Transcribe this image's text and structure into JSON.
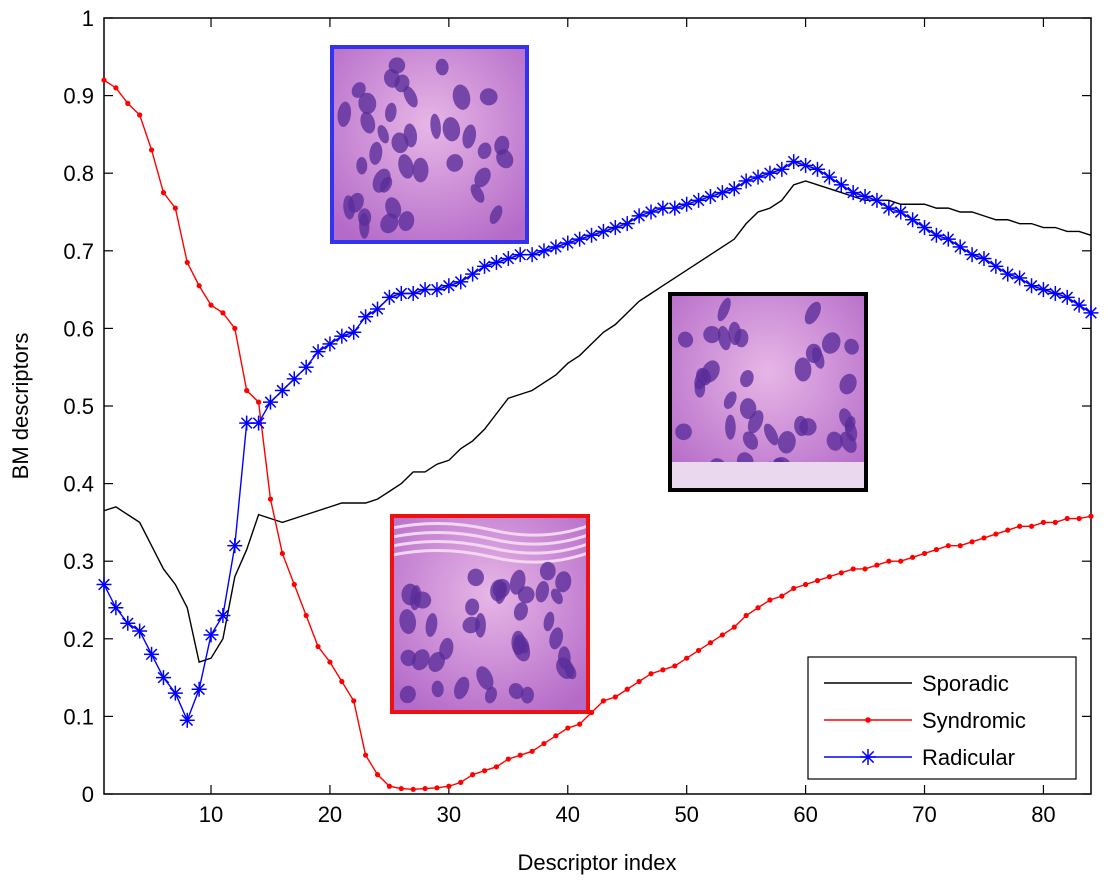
{
  "chart_data": {
    "type": "line",
    "title": "",
    "xlabel": "Descriptor index",
    "ylabel": "BM descriptors",
    "xlim": [
      1,
      84
    ],
    "ylim": [
      0,
      1
    ],
    "xticks": [
      10,
      20,
      30,
      40,
      50,
      60,
      70,
      80
    ],
    "yticks": [
      0,
      0.1,
      0.2,
      0.3,
      0.4,
      0.5,
      0.6,
      0.7,
      0.8,
      0.9,
      1
    ],
    "grid": false,
    "legend_position": "bottom-right",
    "x": [
      1,
      2,
      3,
      4,
      5,
      6,
      7,
      8,
      9,
      10,
      11,
      12,
      13,
      14,
      15,
      16,
      17,
      18,
      19,
      20,
      21,
      22,
      23,
      24,
      25,
      26,
      27,
      28,
      29,
      30,
      31,
      32,
      33,
      34,
      35,
      36,
      37,
      38,
      39,
      40,
      41,
      42,
      43,
      44,
      45,
      46,
      47,
      48,
      49,
      50,
      51,
      52,
      53,
      54,
      55,
      56,
      57,
      58,
      59,
      60,
      61,
      62,
      63,
      64,
      65,
      66,
      67,
      68,
      69,
      70,
      71,
      72,
      73,
      74,
      75,
      76,
      77,
      78,
      79,
      80,
      81,
      82,
      83,
      84
    ],
    "series": [
      {
        "name": "Sporadic",
        "color": "#000000",
        "marker": "none",
        "values": [
          0.365,
          0.37,
          0.36,
          0.35,
          0.32,
          0.29,
          0.27,
          0.24,
          0.17,
          0.175,
          0.2,
          0.28,
          0.315,
          0.36,
          0.355,
          0.35,
          0.355,
          0.36,
          0.365,
          0.37,
          0.375,
          0.375,
          0.375,
          0.38,
          0.39,
          0.4,
          0.415,
          0.415,
          0.425,
          0.43,
          0.445,
          0.455,
          0.47,
          0.49,
          0.51,
          0.515,
          0.52,
          0.53,
          0.54,
          0.555,
          0.565,
          0.58,
          0.595,
          0.605,
          0.62,
          0.635,
          0.645,
          0.655,
          0.665,
          0.675,
          0.685,
          0.695,
          0.705,
          0.715,
          0.735,
          0.75,
          0.755,
          0.765,
          0.785,
          0.79,
          0.785,
          0.78,
          0.775,
          0.77,
          0.765,
          0.765,
          0.765,
          0.76,
          0.76,
          0.76,
          0.755,
          0.755,
          0.75,
          0.75,
          0.745,
          0.74,
          0.74,
          0.735,
          0.735,
          0.73,
          0.73,
          0.725,
          0.725,
          0.72
        ]
      },
      {
        "name": "Syndromic",
        "color": "#ff0000",
        "marker": "dot",
        "values": [
          0.92,
          0.91,
          0.89,
          0.875,
          0.83,
          0.775,
          0.755,
          0.685,
          0.655,
          0.63,
          0.62,
          0.6,
          0.52,
          0.505,
          0.38,
          0.31,
          0.27,
          0.23,
          0.19,
          0.17,
          0.145,
          0.12,
          0.05,
          0.025,
          0.01,
          0.007,
          0.006,
          0.007,
          0.008,
          0.01,
          0.015,
          0.025,
          0.03,
          0.035,
          0.045,
          0.05,
          0.055,
          0.065,
          0.075,
          0.085,
          0.09,
          0.105,
          0.12,
          0.125,
          0.135,
          0.145,
          0.155,
          0.16,
          0.165,
          0.175,
          0.185,
          0.195,
          0.205,
          0.215,
          0.23,
          0.24,
          0.25,
          0.255,
          0.265,
          0.27,
          0.275,
          0.28,
          0.285,
          0.29,
          0.29,
          0.295,
          0.3,
          0.3,
          0.305,
          0.31,
          0.315,
          0.32,
          0.32,
          0.325,
          0.33,
          0.335,
          0.34,
          0.345,
          0.345,
          0.35,
          0.35,
          0.355,
          0.355,
          0.358
        ]
      },
      {
        "name": "Radicular",
        "color": "#0000ff",
        "marker": "asterisk",
        "values": [
          0.27,
          0.24,
          0.22,
          0.21,
          0.18,
          0.15,
          0.13,
          0.095,
          0.135,
          0.205,
          0.23,
          0.32,
          0.478,
          0.478,
          0.505,
          0.52,
          0.535,
          0.55,
          0.57,
          0.58,
          0.59,
          0.595,
          0.615,
          0.625,
          0.64,
          0.645,
          0.645,
          0.65,
          0.65,
          0.655,
          0.66,
          0.67,
          0.68,
          0.685,
          0.69,
          0.695,
          0.695,
          0.7,
          0.705,
          0.71,
          0.715,
          0.72,
          0.725,
          0.73,
          0.735,
          0.745,
          0.75,
          0.755,
          0.755,
          0.76,
          0.765,
          0.77,
          0.775,
          0.78,
          0.79,
          0.795,
          0.8,
          0.805,
          0.815,
          0.81,
          0.805,
          0.795,
          0.785,
          0.775,
          0.77,
          0.765,
          0.755,
          0.75,
          0.74,
          0.73,
          0.72,
          0.715,
          0.705,
          0.695,
          0.69,
          0.68,
          0.67,
          0.665,
          0.655,
          0.65,
          0.645,
          0.64,
          0.63,
          0.62
        ]
      }
    ],
    "insets": [
      {
        "border_color": "#3333ee",
        "description": "histology image"
      },
      {
        "border_color": "#000000",
        "description": "histology image"
      },
      {
        "border_color": "#ee1111",
        "description": "histology image"
      }
    ]
  }
}
